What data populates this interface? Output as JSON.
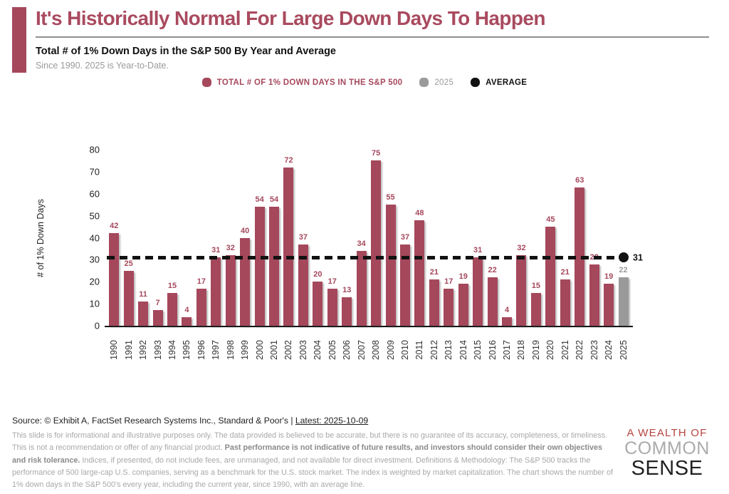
{
  "header": {
    "title": "It's Historically Normal For Large Down Days To Happen",
    "subtitle": "Total # of 1% Down Days in the S&P 500 By Year and Average",
    "note": "Since 1990. 2025 is Year-to-Date."
  },
  "legend": {
    "items": [
      {
        "label": "TOTAL # OF 1% DOWN DAYS IN THE S&P 500",
        "color": "#A5485C"
      },
      {
        "label": "2025",
        "color": "#9A9A9A"
      },
      {
        "label": "AVERAGE",
        "color": "#111111"
      }
    ]
  },
  "chart_data": {
    "type": "bar",
    "title": "Total # of 1% Down Days in the S&P 500 By Year and Average",
    "xlabel": "",
    "ylabel": "# of 1% Down Days",
    "ylim": [
      0,
      80
    ],
    "yticks": [
      0,
      10,
      20,
      30,
      40,
      50,
      60,
      70,
      80
    ],
    "grid": false,
    "legend_position": "top",
    "categories": [
      "1990",
      "1991",
      "1992",
      "1993",
      "1994",
      "1995",
      "1996",
      "1997",
      "1998",
      "1999",
      "2000",
      "2001",
      "2002",
      "2003",
      "2004",
      "2005",
      "2006",
      "2007",
      "2008",
      "2009",
      "2010",
      "2011",
      "2012",
      "2013",
      "2014",
      "2015",
      "2016",
      "2017",
      "2018",
      "2019",
      "2020",
      "2021",
      "2022",
      "2023",
      "2024",
      "2025"
    ],
    "values": [
      42,
      25,
      11,
      7,
      15,
      4,
      17,
      31,
      32,
      40,
      54,
      54,
      72,
      37,
      20,
      17,
      13,
      34,
      75,
      55,
      37,
      48,
      21,
      17,
      19,
      31,
      22,
      4,
      32,
      15,
      45,
      21,
      63,
      28,
      19,
      22
    ],
    "bar_color": "#A5485C",
    "highlight_category": "2025",
    "highlight_index": 35,
    "highlight_color": "#9A9A9A",
    "average": 31,
    "average_label": "31",
    "average_line_color": "#111111"
  },
  "footer": {
    "source_prefix": "Source: © Exhibit A, FactSet Research Systems Inc., Standard & Poor's | ",
    "source_link": "Latest: 2025-10-09",
    "disclaimer_part1": "This slide is for informational and illustrative purposes only. The data provided is believed to be accurate, but there is no guarantee of its accuracy, completeness, or timeliness. This is not a recommendation or offer of any financial product. ",
    "disclaimer_bold": "Past performance is not indicative of future results, and investors should consider their own objectives and risk tolerance.",
    "disclaimer_part2": " Indices, if presented, do not include fees, are unmanaged, and not available for direct investment. Definitions & Methodology: The S&P 500 tracks the performance of 500 large-cap U.S. companies, serving as a benchmark for the U.S. stock market. The index is weighted by market capitalization. The chart shows the number of 1% down days in the S&P 500's every year, including the current year, since 1990, with an average line."
  },
  "logo": {
    "line1": "A WEALTH OF",
    "line2": "COMMON",
    "line3": "SENSE"
  }
}
